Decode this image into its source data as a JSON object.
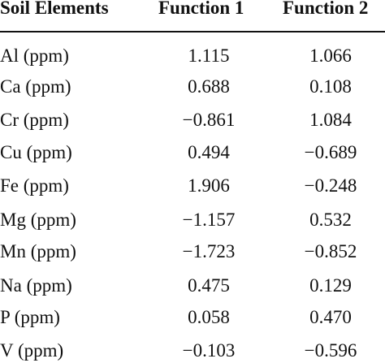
{
  "table": {
    "headers": [
      "Soil Elements",
      "Function 1",
      "Function 2"
    ],
    "rows": [
      {
        "element": "Al (ppm)",
        "f1": "1.115",
        "f2": "1.066"
      },
      {
        "element": "Ca (ppm)",
        "f1": "0.688",
        "f2": "0.108"
      },
      {
        "element": "Cr (ppm)",
        "f1": "−0.861",
        "f2": "1.084"
      },
      {
        "element": "Cu (ppm)",
        "f1": "0.494",
        "f2": "−0.689"
      },
      {
        "element": "Fe (ppm)",
        "f1": "1.906",
        "f2": "−0.248"
      },
      {
        "element": "Mg (ppm)",
        "f1": "−1.157",
        "f2": "0.532"
      },
      {
        "element": "Mn (ppm)",
        "f1": "−1.723",
        "f2": "−0.852"
      },
      {
        "element": "Na (ppm)",
        "f1": "0.475",
        "f2": "0.129"
      },
      {
        "element": "P (ppm)",
        "f1": "0.058",
        "f2": "0.470"
      },
      {
        "element": "V (ppm)",
        "f1": "−0.103",
        "f2": "−0.596"
      }
    ]
  }
}
